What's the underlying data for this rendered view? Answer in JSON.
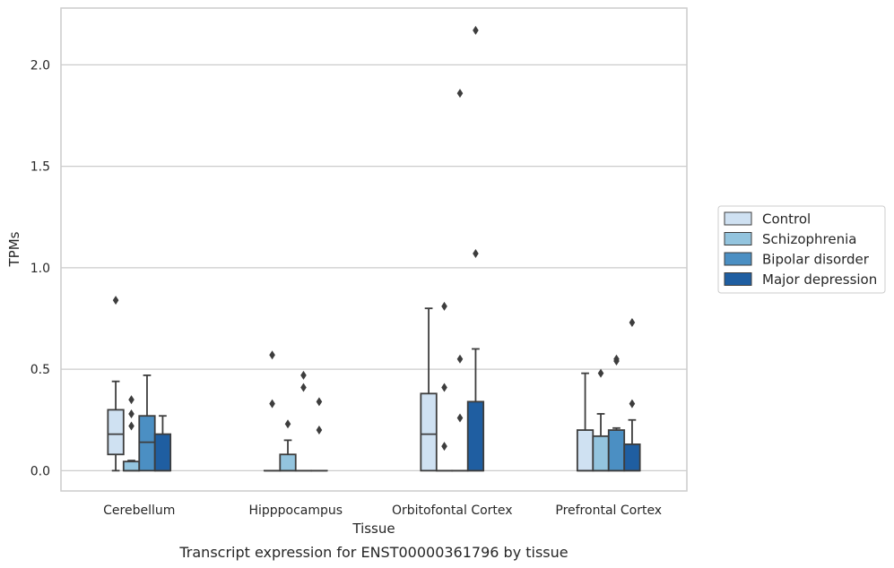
{
  "chart_data": {
    "type": "box",
    "title": "",
    "caption": "Transcript expression for ENST00000361796 by tissue",
    "xlabel": "Tissue",
    "ylabel": "TPMs",
    "ylim": [
      -0.1,
      2.28
    ],
    "yticks": [
      "0.0",
      "0.5",
      "1.0",
      "1.5",
      "2.0"
    ],
    "ytick_values": [
      0.0,
      0.5,
      1.0,
      1.5,
      2.0
    ],
    "grid": "horizontal",
    "legend_position": "right",
    "categories": [
      "Cerebellum",
      "Hipppocampus",
      "Orbitofontal Cortex",
      "Prefrontal Cortex"
    ],
    "series": [
      {
        "name": "Control",
        "color": "#cfe1f2",
        "boxes": [
          {
            "whislo": 0.0,
            "q1": 0.08,
            "med": 0.18,
            "q3": 0.3,
            "whishi": 0.44,
            "fliers": [
              0.84
            ]
          },
          {
            "whislo": 0.0,
            "q1": 0.0,
            "med": 0.0,
            "q3": 0.0,
            "whishi": 0.0,
            "fliers": [
              0.57,
              0.33
            ]
          },
          {
            "whislo": 0.0,
            "q1": 0.0,
            "med": 0.18,
            "q3": 0.38,
            "whishi": 0.8,
            "fliers": []
          },
          {
            "whislo": 0.0,
            "q1": 0.0,
            "med": 0.0,
            "q3": 0.2,
            "whishi": 0.48,
            "fliers": []
          }
        ]
      },
      {
        "name": "Schizophrenia",
        "color": "#93c4de",
        "boxes": [
          {
            "whislo": 0.0,
            "q1": 0.0,
            "med": 0.0,
            "q3": 0.045,
            "whishi": 0.05,
            "fliers": [
              0.35,
              0.28,
              0.22
            ]
          },
          {
            "whislo": 0.0,
            "q1": 0.0,
            "med": 0.0,
            "q3": 0.08,
            "whishi": 0.15,
            "fliers": [
              0.23
            ]
          },
          {
            "whislo": 0.0,
            "q1": 0.0,
            "med": 0.0,
            "q3": 0.0,
            "whishi": 0.0,
            "fliers": [
              0.81,
              0.41,
              0.12
            ]
          },
          {
            "whislo": 0.0,
            "q1": 0.0,
            "med": 0.0,
            "q3": 0.17,
            "whishi": 0.28,
            "fliers": [
              0.48
            ]
          }
        ]
      },
      {
        "name": "Bipolar disorder",
        "color": "#4b8fc3",
        "boxes": [
          {
            "whislo": 0.0,
            "q1": 0.0,
            "med": 0.14,
            "q3": 0.27,
            "whishi": 0.47,
            "fliers": []
          },
          {
            "whislo": 0.0,
            "q1": 0.0,
            "med": 0.0,
            "q3": 0.0,
            "whishi": 0.0,
            "fliers": [
              0.47,
              0.41
            ]
          },
          {
            "whislo": 0.0,
            "q1": 0.0,
            "med": 0.0,
            "q3": 0.0,
            "whishi": 0.0,
            "fliers": [
              1.86,
              0.55,
              0.26
            ]
          },
          {
            "whislo": 0.0,
            "q1": 0.0,
            "med": 0.0,
            "q3": 0.2,
            "whishi": 0.21,
            "fliers": [
              0.55,
              0.54
            ]
          }
        ]
      },
      {
        "name": "Major depression",
        "color": "#1f5ea1",
        "boxes": [
          {
            "whislo": 0.0,
            "q1": 0.0,
            "med": 0.0,
            "q3": 0.18,
            "whishi": 0.27,
            "fliers": []
          },
          {
            "whislo": 0.0,
            "q1": 0.0,
            "med": 0.0,
            "q3": 0.0,
            "whishi": 0.0,
            "fliers": [
              0.34,
              0.2
            ]
          },
          {
            "whislo": 0.0,
            "q1": 0.0,
            "med": 0.0,
            "q3": 0.34,
            "whishi": 0.6,
            "fliers": [
              2.17,
              1.07
            ]
          },
          {
            "whislo": 0.0,
            "q1": 0.0,
            "med": 0.0,
            "q3": 0.13,
            "whishi": 0.25,
            "fliers": [
              0.73,
              0.33
            ]
          }
        ]
      }
    ]
  }
}
